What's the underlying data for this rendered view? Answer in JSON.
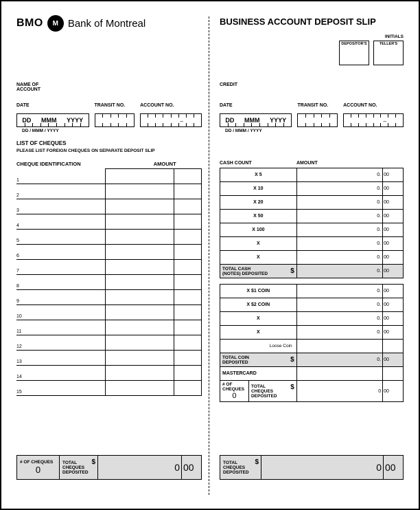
{
  "brand": {
    "short": "BMO",
    "long": "Bank of Montreal",
    "logo_glyph": "M"
  },
  "title": "BUSINESS ACCOUNT DEPOSIT SLIP",
  "labels": {
    "initials": "INITIALS",
    "depositors": "DEPOSITOR'S",
    "tellers": "TELLER'S",
    "name_of": "NAME OF",
    "account": "ACCOUNT",
    "credit": "CREDIT",
    "date": "DATE",
    "transit_no": "TRANSIT NO.",
    "account_no": "ACCOUNT NO.",
    "date_fmt_big": [
      "DD",
      "MMM",
      "YYYY"
    ],
    "date_fmt": "DD / MMM / YYYY",
    "list_of_cheques": "LIST OF CHEQUES",
    "foreign_note": "PLEASE LIST FOREIGN CHEQUES ON SEPARATE DEPOSIT SLIP",
    "cheque_id": "CHEQUE IDENTIFICATION",
    "amount": "AMOUNT",
    "cash_count": "CASH COUNT",
    "total_cash_notes": "TOTAL CASH\n(NOTES) DEPOSITED",
    "total_coin": "TOTAL COIN\nDEPOSITED",
    "mastercard": "MASTERCARD",
    "num_cheques": "# OF\nCHEQUES",
    "total_cheques": "TOTAL\nCHEQUES\nDEPOSITED",
    "num_cheques_footer": "# OF CHEQUES",
    "loose_coin": "Loose Coin"
  },
  "cheque_rows": [
    "1",
    "2",
    "3",
    "4",
    "5",
    "6",
    "7",
    "8",
    "9",
    "10",
    "11",
    "12",
    "13",
    "14",
    "15"
  ],
  "cash_denoms": [
    {
      "label": "X 5",
      "whole": "0",
      "cents": "00"
    },
    {
      "label": "X 10",
      "whole": "0",
      "cents": "00"
    },
    {
      "label": "X 20",
      "whole": "0",
      "cents": "00"
    },
    {
      "label": "X 50",
      "whole": "0",
      "cents": "00"
    },
    {
      "label": "X 100",
      "whole": "0",
      "cents": "00"
    },
    {
      "label": "X",
      "whole": "0",
      "cents": "00"
    },
    {
      "label": "X",
      "whole": "0",
      "cents": "00"
    }
  ],
  "cash_total": {
    "whole": "0",
    "cents": "00"
  },
  "coin_denoms": [
    {
      "label": "X $1 COIN",
      "whole": "0",
      "cents": "00"
    },
    {
      "label": "X $2 COIN",
      "whole": "0",
      "cents": "00"
    },
    {
      "label": "X",
      "whole": "0",
      "cents": "00"
    },
    {
      "label": "X",
      "whole": "0",
      "cents": "00"
    },
    {
      "label": "Loose Coin",
      "whole": "",
      "cents": ""
    }
  ],
  "coin_total": {
    "whole": "0",
    "cents": "00"
  },
  "mastercard_row": {
    "whole": "",
    "cents": ""
  },
  "cheques_subtotal": {
    "count": "0",
    "whole": "0",
    "cents": "00"
  },
  "footer_left": {
    "count": "0",
    "whole": "0",
    "cents": "00"
  },
  "footer_right": {
    "whole": "0",
    "cents": "00"
  },
  "colors": {
    "border": "#000000",
    "bg": "#ffffff",
    "shade": "#dddddd"
  }
}
